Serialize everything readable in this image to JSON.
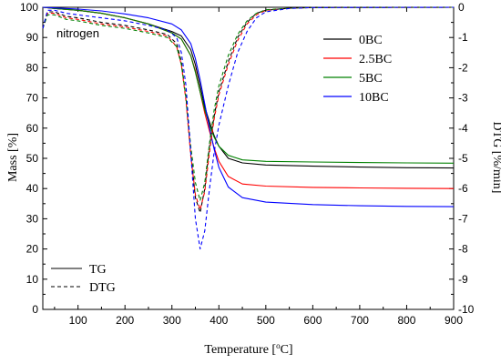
{
  "chart_data": {
    "type": "line",
    "condition_label": "nitrogen",
    "xlabel": "Temperature [°C]",
    "xlabel_main": "Temperature [",
    "xlabel_sup": "o",
    "xlabel_end": "C]",
    "ylabel_left": "Mass [%]",
    "ylabel_right": "DTG [%/min]",
    "xlim": [
      25,
      900
    ],
    "ylim_left": [
      0,
      100
    ],
    "ylim_right": [
      -10,
      0
    ],
    "x_ticks": [
      100,
      200,
      300,
      400,
      500,
      600,
      700,
      800,
      900
    ],
    "y_ticks_left": [
      0,
      10,
      20,
      30,
      40,
      50,
      60,
      70,
      80,
      90,
      100
    ],
    "y_ticks_right": [
      0,
      -1,
      -2,
      -3,
      -4,
      -5,
      -6,
      -7,
      -8,
      -9,
      -10
    ],
    "legend": {
      "placement": "top-right",
      "entries": [
        {
          "name": "0BC",
          "color": "#000000"
        },
        {
          "name": "2.5BC",
          "color": "#ff0000"
        },
        {
          "name": "5BC",
          "color": "#008000"
        },
        {
          "name": "10BC",
          "color": "#0000ff"
        }
      ]
    },
    "style_legend": {
      "placement": "bottom-left",
      "entries": [
        {
          "name": "TG",
          "dash": "solid"
        },
        {
          "name": "DTG",
          "dash": "dashed"
        }
      ]
    },
    "series": [
      {
        "name": "0BC",
        "kind": "TG",
        "color": "#000000",
        "axis": "left",
        "x": [
          25,
          50,
          100,
          150,
          200,
          250,
          300,
          320,
          340,
          350,
          360,
          370,
          380,
          390,
          400,
          420,
          450,
          500,
          600,
          700,
          800,
          900
        ],
        "y": [
          100,
          99.6,
          99,
          98,
          96.5,
          94.5,
          92,
          90.5,
          86,
          81,
          74,
          67,
          62,
          57.5,
          54,
          50,
          48.5,
          47.8,
          47.4,
          47.1,
          46.9,
          46.8
        ]
      },
      {
        "name": "2.5BC",
        "kind": "TG",
        "color": "#ff0000",
        "axis": "left",
        "x": [
          25,
          50,
          100,
          150,
          200,
          250,
          300,
          320,
          340,
          350,
          360,
          370,
          380,
          390,
          400,
          420,
          450,
          500,
          600,
          700,
          800,
          900
        ],
        "y": [
          100,
          99.6,
          99,
          98,
          96.5,
          94.5,
          91.5,
          89.5,
          84,
          79,
          72,
          65,
          59,
          53.5,
          49,
          44,
          41.5,
          40.8,
          40.4,
          40.2,
          40.1,
          40.0
        ]
      },
      {
        "name": "5BC",
        "kind": "TG",
        "color": "#008000",
        "axis": "left",
        "x": [
          25,
          50,
          100,
          150,
          200,
          250,
          300,
          320,
          340,
          350,
          360,
          370,
          380,
          390,
          400,
          420,
          450,
          500,
          600,
          700,
          800,
          900
        ],
        "y": [
          100,
          99.6,
          99,
          98,
          96.5,
          94.5,
          91.5,
          89.5,
          84,
          78.5,
          72,
          66,
          61,
          57,
          54,
          51,
          49.5,
          49,
          48.8,
          48.6,
          48.5,
          48.4
        ]
      },
      {
        "name": "10BC",
        "kind": "TG",
        "color": "#0000ff",
        "axis": "left",
        "x": [
          25,
          50,
          100,
          150,
          200,
          250,
          300,
          320,
          340,
          350,
          360,
          370,
          380,
          390,
          400,
          420,
          450,
          500,
          600,
          700,
          800,
          900
        ],
        "y": [
          100,
          99.8,
          99.4,
          98.8,
          97.8,
          96.5,
          94.5,
          92.5,
          88,
          83,
          76,
          68,
          60,
          53,
          47,
          40.5,
          37,
          35.5,
          34.7,
          34.3,
          34.1,
          34.0
        ]
      },
      {
        "name": "0BC",
        "kind": "DTG",
        "color": "#000000",
        "axis": "right",
        "x": [
          25,
          35,
          50,
          75,
          100,
          150,
          200,
          250,
          290,
          310,
          320,
          330,
          340,
          350,
          360,
          370,
          380,
          390,
          400,
          420,
          440,
          460,
          480,
          500,
          550,
          600,
          900
        ],
        "y": [
          -0.7,
          -0.15,
          -0.15,
          -0.3,
          -0.35,
          -0.5,
          -0.6,
          -0.75,
          -0.9,
          -1.2,
          -1.8,
          -3.0,
          -4.8,
          -6.3,
          -6.8,
          -6.0,
          -4.6,
          -3.6,
          -2.8,
          -1.8,
          -1.0,
          -0.5,
          -0.2,
          -0.1,
          -0.03,
          -0.01,
          0
        ]
      },
      {
        "name": "2.5BC",
        "kind": "DTG",
        "color": "#ff0000",
        "axis": "right",
        "x": [
          25,
          35,
          50,
          75,
          100,
          150,
          200,
          250,
          290,
          310,
          320,
          330,
          340,
          350,
          360,
          370,
          380,
          390,
          400,
          420,
          440,
          460,
          480,
          500,
          550,
          600,
          900
        ],
        "y": [
          -0.7,
          -0.2,
          -0.2,
          -0.35,
          -0.4,
          -0.55,
          -0.65,
          -0.8,
          -0.95,
          -1.3,
          -1.9,
          -3.1,
          -4.9,
          -6.2,
          -6.7,
          -6.1,
          -4.8,
          -3.7,
          -2.9,
          -1.9,
          -1.1,
          -0.55,
          -0.25,
          -0.1,
          -0.03,
          -0.01,
          0
        ]
      },
      {
        "name": "5BC",
        "kind": "DTG",
        "color": "#008000",
        "axis": "right",
        "x": [
          25,
          35,
          50,
          75,
          100,
          150,
          200,
          250,
          290,
          310,
          320,
          330,
          340,
          350,
          360,
          370,
          380,
          390,
          400,
          420,
          440,
          460,
          480,
          500,
          550,
          600,
          900
        ],
        "y": [
          -0.7,
          -0.25,
          -0.25,
          -0.4,
          -0.45,
          -0.6,
          -0.7,
          -0.85,
          -1.0,
          -1.3,
          -1.9,
          -3.0,
          -4.6,
          -5.8,
          -6.4,
          -5.8,
          -4.5,
          -3.4,
          -2.6,
          -1.6,
          -0.9,
          -0.45,
          -0.2,
          -0.08,
          -0.03,
          -0.01,
          0
        ]
      },
      {
        "name": "10BC",
        "kind": "DTG",
        "color": "#0000ff",
        "axis": "right",
        "x": [
          25,
          35,
          50,
          75,
          100,
          150,
          200,
          250,
          290,
          310,
          320,
          330,
          340,
          350,
          360,
          370,
          380,
          390,
          400,
          420,
          440,
          460,
          480,
          500,
          550,
          600,
          900
        ],
        "y": [
          -0.7,
          -0.1,
          -0.1,
          -0.2,
          -0.25,
          -0.35,
          -0.45,
          -0.6,
          -0.75,
          -1.0,
          -1.5,
          -2.6,
          -4.8,
          -7.0,
          -8.0,
          -7.4,
          -6.0,
          -4.8,
          -3.9,
          -2.6,
          -1.5,
          -0.8,
          -0.35,
          -0.15,
          -0.04,
          -0.01,
          0
        ]
      }
    ]
  }
}
